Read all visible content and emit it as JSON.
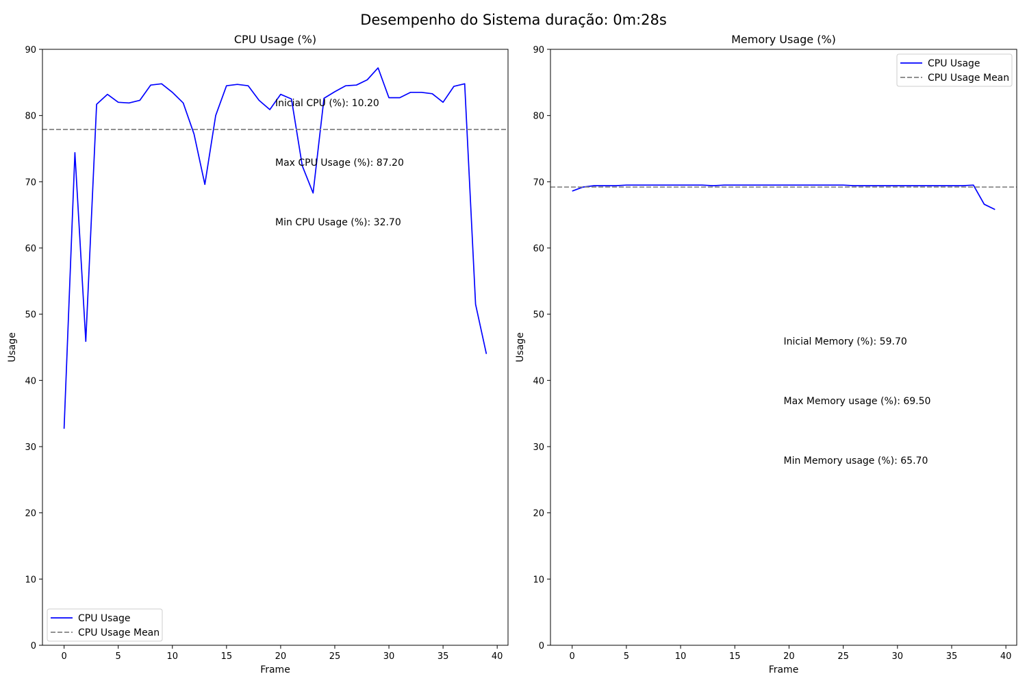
{
  "figure": {
    "suptitle": "Desempenho do Sistema duração: 0m:28s"
  },
  "chart_data": [
    {
      "type": "line",
      "title": "CPU Usage (%)",
      "xlabel": "Frame",
      "ylabel": "Usage",
      "xlim": [
        -2,
        41
      ],
      "ylim": [
        0,
        90
      ],
      "xticks": [
        0,
        5,
        10,
        15,
        20,
        25,
        30,
        35,
        40
      ],
      "yticks": [
        0,
        10,
        20,
        30,
        40,
        50,
        60,
        70,
        80,
        90
      ],
      "grid": false,
      "legend_placement": "lower left",
      "series": [
        {
          "name": "CPU Usage",
          "color": "#0000ff",
          "style": "solid",
          "x": [
            0,
            1,
            2,
            3,
            4,
            5,
            6,
            7,
            8,
            9,
            10,
            11,
            12,
            13,
            14,
            15,
            16,
            17,
            18,
            19,
            20,
            21,
            22,
            23,
            24,
            25,
            26,
            27,
            28,
            29,
            30,
            31,
            32,
            33,
            34,
            35,
            36,
            37,
            38,
            39
          ],
          "y": [
            32.7,
            74.4,
            45.9,
            81.7,
            83.2,
            82.0,
            81.9,
            82.3,
            84.6,
            84.8,
            83.5,
            81.9,
            77.2,
            69.6,
            80.0,
            84.5,
            84.7,
            84.5,
            82.3,
            80.9,
            83.2,
            82.5,
            72.4,
            68.3,
            82.6,
            83.6,
            84.5,
            84.6,
            85.4,
            87.2,
            82.7,
            82.7,
            83.5,
            83.5,
            83.3,
            82.0,
            84.4,
            84.8,
            51.5,
            44.0
          ]
        },
        {
          "name": "CPU Usage Mean",
          "color": "#808080",
          "style": "dashed",
          "hline": 77.9
        }
      ],
      "annotations": [
        {
          "text": "Inicial CPU (%): 10.20",
          "x": 19.5,
          "y": 81.4
        },
        {
          "text": "Max CPU Usage (%): 87.20",
          "x": 19.5,
          "y": 72.4
        },
        {
          "text": "Min CPU Usage (%): 32.70",
          "x": 19.5,
          "y": 63.4
        }
      ]
    },
    {
      "type": "line",
      "title": "Memory Usage (%)",
      "xlabel": "Frame",
      "ylabel": "Usage",
      "xlim": [
        -2,
        41
      ],
      "ylim": [
        0,
        90
      ],
      "xticks": [
        0,
        5,
        10,
        15,
        20,
        25,
        30,
        35,
        40
      ],
      "yticks": [
        0,
        10,
        20,
        30,
        40,
        50,
        60,
        70,
        80,
        90
      ],
      "grid": false,
      "legend_placement": "upper right",
      "series": [
        {
          "name": "CPU Usage",
          "color": "#0000ff",
          "style": "solid",
          "x": [
            0,
            1,
            2,
            3,
            4,
            5,
            6,
            7,
            8,
            9,
            10,
            11,
            12,
            13,
            14,
            15,
            16,
            17,
            18,
            19,
            20,
            21,
            22,
            23,
            24,
            25,
            26,
            27,
            28,
            29,
            30,
            31,
            32,
            33,
            34,
            35,
            36,
            37,
            38,
            39
          ],
          "y": [
            68.6,
            69.2,
            69.4,
            69.4,
            69.4,
            69.5,
            69.5,
            69.5,
            69.5,
            69.5,
            69.5,
            69.5,
            69.5,
            69.4,
            69.5,
            69.5,
            69.5,
            69.5,
            69.5,
            69.5,
            69.5,
            69.5,
            69.5,
            69.5,
            69.5,
            69.5,
            69.4,
            69.4,
            69.4,
            69.4,
            69.4,
            69.4,
            69.4,
            69.4,
            69.4,
            69.4,
            69.4,
            69.5,
            66.6,
            65.8
          ]
        },
        {
          "name": "CPU Usage Mean",
          "color": "#808080",
          "style": "dashed",
          "hline": 69.2
        }
      ],
      "annotations": [
        {
          "text": "Inicial Memory (%): 59.70",
          "x": 19.5,
          "y": 45.4
        },
        {
          "text": "Max Memory usage (%): 69.50",
          "x": 19.5,
          "y": 36.4
        },
        {
          "text": "Min Memory usage (%): 65.70",
          "x": 19.5,
          "y": 27.4
        }
      ]
    }
  ]
}
